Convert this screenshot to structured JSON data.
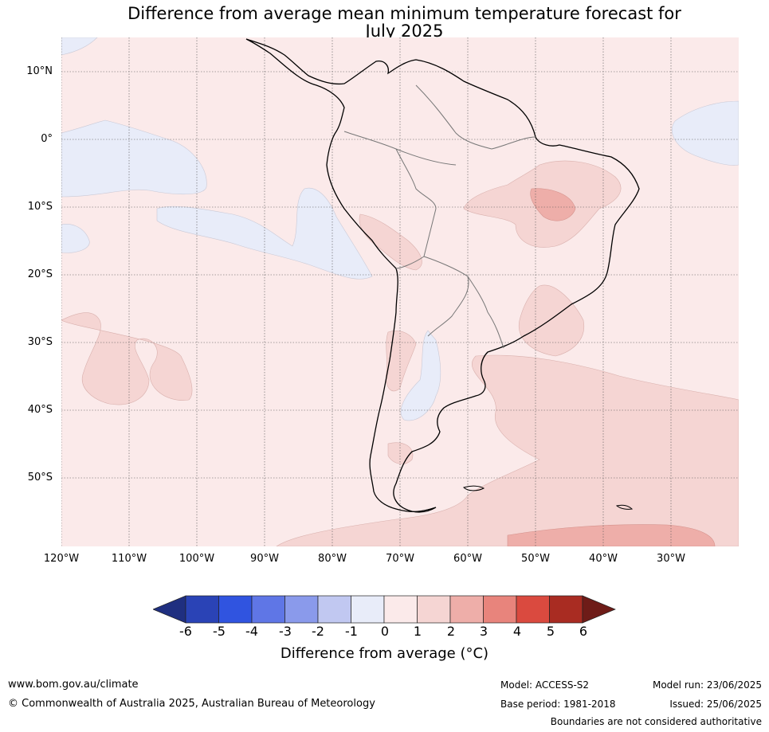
{
  "title": {
    "line1": "Difference from average mean minimum temperature forecast for",
    "line2": "July 2025"
  },
  "map": {
    "region": "South America",
    "latitude_labels": [
      "10°N",
      "0°",
      "10°S",
      "20°S",
      "30°S",
      "40°S",
      "50°S"
    ],
    "longitude_labels": [
      "120°W",
      "110°W",
      "100°W",
      "90°W",
      "80°W",
      "70°W",
      "60°W",
      "50°W",
      "40°W",
      "30°W"
    ],
    "gridlines": true,
    "colors": {
      "background_0_to_1": "#fbeaea",
      "band_1_to_2": "#f5d5d3",
      "band_2_to_3": "#eeaea9",
      "band_minus1_to_0": "#e8ecf9"
    }
  },
  "colorbar": {
    "ticks": [
      "-6",
      "-5",
      "-4",
      "-3",
      "-2",
      "-1",
      "0",
      "1",
      "2",
      "3",
      "4",
      "5",
      "6"
    ],
    "colors": [
      "#1f2f80",
      "#2a43b6",
      "#3054e0",
      "#5f76e6",
      "#8a9aeb",
      "#c1c8f1",
      "#e8ecf9",
      "#fbeaea",
      "#f5d5d3",
      "#eeaea9",
      "#e8847c",
      "#da4a3f",
      "#a92c22",
      "#6e1c18"
    ],
    "label": "Difference from average (°C)"
  },
  "footer": {
    "website": "www.bom.gov.au/climate",
    "copyright": "© Commonwealth of Australia 2025, Australian Bureau of Meteorology",
    "model": "Model: ACCESS-S2",
    "base_period": "Base period: 1981-2018",
    "model_run": "Model run: 23/06/2025",
    "issued": "Issued: 25/06/2025",
    "disclaimer": "Boundaries are not considered authoritative"
  }
}
